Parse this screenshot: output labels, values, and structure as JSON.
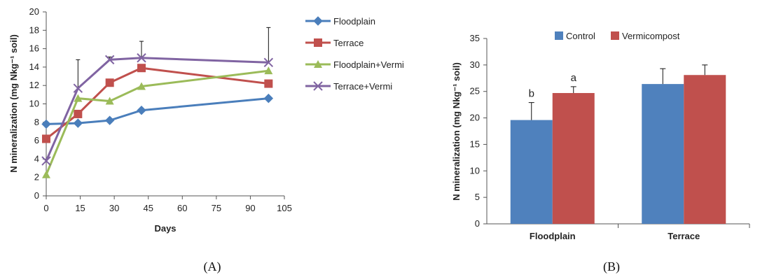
{
  "chart_data": [
    {
      "panel_label": "(A)",
      "type": "line",
      "xlabel": "Days",
      "ylabel": "N mineralization (mg Nkg⁻¹ soil)",
      "xlim": [
        0,
        105
      ],
      "ylim": [
        0,
        20
      ],
      "xticks": [
        0,
        15,
        30,
        45,
        60,
        75,
        90,
        105
      ],
      "yticks": [
        0,
        2,
        4,
        6,
        8,
        10,
        12,
        14,
        16,
        18,
        20
      ],
      "x": [
        0,
        14,
        28,
        42,
        98
      ],
      "legend_position": "right",
      "series": [
        {
          "name": "Floodplain",
          "color": "#4a7ebb",
          "marker": "diamond",
          "values": [
            7.8,
            7.9,
            8.2,
            9.3,
            10.6
          ],
          "err": [
            0,
            0,
            0,
            0,
            0
          ]
        },
        {
          "name": "Terrace",
          "color": "#c0504d",
          "marker": "square",
          "values": [
            6.2,
            8.9,
            12.3,
            13.9,
            12.2
          ],
          "err": [
            0,
            0,
            0,
            0,
            0
          ]
        },
        {
          "name": "Floodplain+Vermi",
          "color": "#9bbb59",
          "marker": "triangle",
          "values": [
            2.3,
            10.6,
            10.3,
            11.9,
            13.6
          ],
          "err": [
            0,
            0,
            0,
            0,
            0
          ]
        },
        {
          "name": "Terrace+Vermi",
          "color": "#8064a2",
          "marker": "x",
          "values": [
            3.8,
            11.7,
            14.8,
            15.0,
            14.5
          ],
          "err": [
            0,
            3.1,
            0.3,
            1.8,
            3.8
          ]
        }
      ]
    },
    {
      "panel_label": "(B)",
      "type": "bar",
      "xlabel": "",
      "ylabel": "N mineralization (mg Nkg⁻¹ soil)",
      "ylim": [
        0,
        35
      ],
      "yticks": [
        0,
        5,
        10,
        15,
        20,
        25,
        30,
        35
      ],
      "categories": [
        "Floodplain",
        "Terrace"
      ],
      "legend_position": "top",
      "series": [
        {
          "name": "Control",
          "color": "#4f81bd",
          "values": [
            19.6,
            26.4
          ],
          "err": [
            3.3,
            2.9
          ],
          "labels": [
            "b",
            ""
          ]
        },
        {
          "name": "Vermicompost",
          "color": "#c0504d",
          "values": [
            24.7,
            28.1
          ],
          "err": [
            1.2,
            1.9
          ],
          "labels": [
            "a",
            ""
          ]
        }
      ]
    }
  ]
}
